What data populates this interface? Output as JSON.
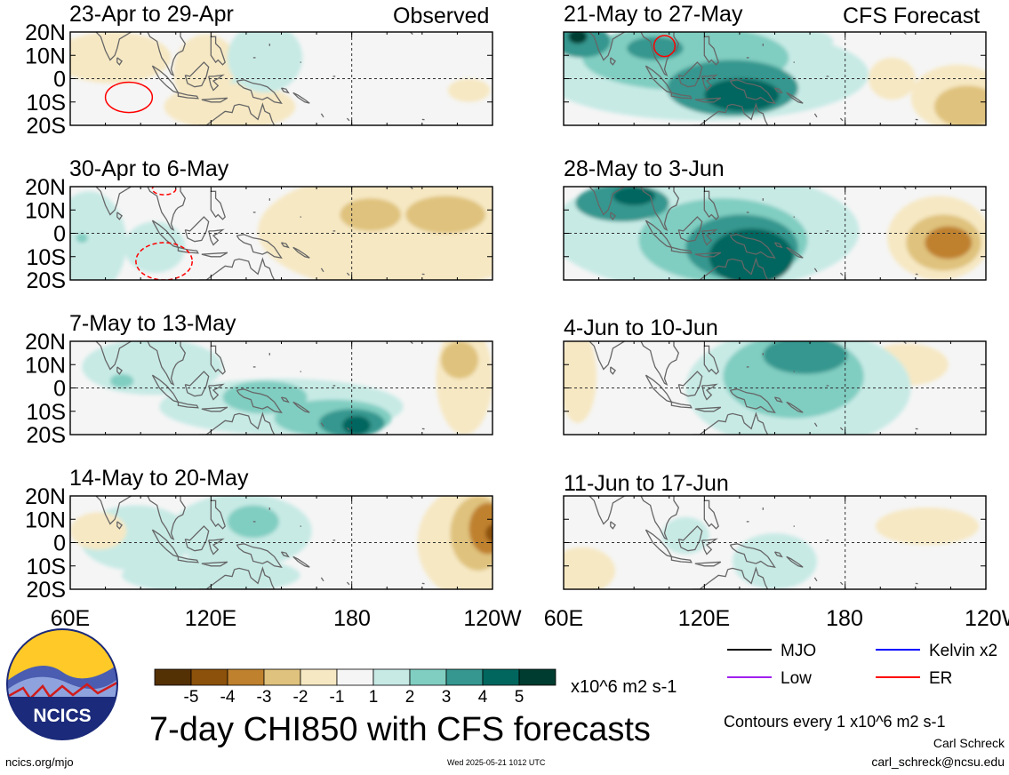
{
  "left_column_heading": "Observed",
  "right_column_heading": "CFS Forecast",
  "panels": [
    {
      "title": "23-Apr to 29-Apr"
    },
    {
      "title": "30-Apr to 6-May"
    },
    {
      "title": "7-May to 13-May"
    },
    {
      "title": "14-May to 20-May"
    },
    {
      "title": "21-May to 27-May"
    },
    {
      "title": "28-May to 3-Jun"
    },
    {
      "title": "4-Jun to 10-Jun"
    },
    {
      "title": "11-Jun to 17-Jun"
    }
  ],
  "colors": {
    "bins": [
      "#543005",
      "#8c510a",
      "#bf812d",
      "#dfc27d",
      "#f6e8c3",
      "#f5f5f5",
      "#c7eae5",
      "#80cdc1",
      "#35978f",
      "#01665e",
      "#003c30"
    ],
    "coast": "#666666",
    "mjo": "#000000",
    "kelvin": "#0000ff",
    "low": "#a020f0",
    "er": "#ff0000"
  },
  "chart_data": {
    "type": "heatmap",
    "title": "7-day CHI850 with CFS forecasts",
    "units": "x10^6 m2 s-1",
    "x_ticks": [
      "60E",
      "120E",
      "180",
      "120W"
    ],
    "y_ticks": [
      "20N",
      "10N",
      "0",
      "10S",
      "20S"
    ],
    "lon_range": [
      60,
      240
    ],
    "lat_range": [
      -20,
      20
    ],
    "colorbar": {
      "levels": [
        -5,
        -4,
        -3,
        -2,
        -1,
        1,
        2,
        3,
        4,
        5
      ],
      "tick_labels": [
        "-5",
        "-4",
        "-3",
        "-2",
        "-1",
        "1",
        "2",
        "3",
        "4",
        "5"
      ]
    },
    "contour_interval_note": "Contours every 1 x10^6 m2 s-1",
    "legend": [
      {
        "label": "MJO",
        "color": "#000000"
      },
      {
        "label": "Kelvin x2",
        "color": "#0000ff"
      },
      {
        "label": "Low",
        "color": "#a020f0"
      },
      {
        "label": "ER",
        "color": "#ff0000"
      }
    ],
    "panels": [
      {
        "title": "23-Apr to 29-Apr",
        "column": "Observed",
        "blobs": [
          {
            "lon": 78,
            "lat": 9,
            "rlon": 25,
            "rlat": 11,
            "v": -1.4
          },
          {
            "lon": 128,
            "lat": -12,
            "rlon": 28,
            "rlat": 10,
            "v": -1.3
          },
          {
            "lon": 118,
            "lat": 3,
            "rlon": 14,
            "rlat": 16,
            "v": -1.2
          },
          {
            "lon": 143,
            "lat": 9,
            "rlon": 16,
            "rlat": 15,
            "v": 1.4
          },
          {
            "lon": 136,
            "lat": -7,
            "rlon": 10,
            "rlat": 9,
            "v": 1.2
          },
          {
            "lon": 230,
            "lat": -5,
            "rlon": 9,
            "rlat": 5,
            "v": -1.2
          }
        ],
        "er_contours": [
          {
            "lon": 85,
            "lat": -8,
            "rlon": 10,
            "rlat": 6.5,
            "dashed": false
          }
        ]
      },
      {
        "title": "30-Apr to 6-May",
        "column": "Observed",
        "blobs": [
          {
            "lon": 200,
            "lat": 1,
            "rlon": 60,
            "rlat": 26,
            "v": -1.6
          },
          {
            "lon": 188,
            "lat": 8,
            "rlon": 13,
            "rlat": 7,
            "v": -2.1
          },
          {
            "lon": 220,
            "lat": 8,
            "rlon": 17,
            "rlat": 8,
            "v": -2.2
          },
          {
            "lon": 68,
            "lat": -4,
            "rlon": 16,
            "rlat": 22,
            "v": 1.3
          },
          {
            "lon": 96,
            "lat": -6,
            "rlon": 13,
            "rlat": 11,
            "v": 1.1
          },
          {
            "lon": 65,
            "lat": -2,
            "rlon": 2.5,
            "rlat": 2,
            "v": 2.2
          }
        ],
        "er_contours": [
          {
            "lon": 100,
            "lat": -12,
            "rlon": 12,
            "rlat": 8,
            "dashed": true
          },
          {
            "lon": 100,
            "lat": 19,
            "rlon": 5,
            "rlat": 2.5,
            "dashed": true
          }
        ]
      },
      {
        "title": "7-May to 13-May",
        "column": "Observed",
        "blobs": [
          {
            "lon": 150,
            "lat": -8,
            "rlon": 52,
            "rlat": 12,
            "v": 1.4
          },
          {
            "lon": 95,
            "lat": 9,
            "rlon": 30,
            "rlat": 12,
            "v": 1.2
          },
          {
            "lon": 172,
            "lat": -13,
            "rlon": 25,
            "rlat": 8,
            "v": 2.3
          },
          {
            "lon": 180,
            "lat": -15,
            "rlon": 14,
            "rlat": 6,
            "v": 3.4
          },
          {
            "lon": 182,
            "lat": -16,
            "rlon": 6,
            "rlat": 4,
            "v": 4.3
          },
          {
            "lon": 143,
            "lat": -4,
            "rlon": 18,
            "rlat": 7,
            "v": 2.1
          },
          {
            "lon": 82,
            "lat": 3,
            "rlon": 5,
            "rlat": 3,
            "v": 2.1
          },
          {
            "lon": 228,
            "lat": 4,
            "rlon": 12,
            "rlat": 24,
            "v": -1.5
          },
          {
            "lon": 226,
            "lat": 12,
            "rlon": 8,
            "rlat": 8,
            "v": -2.2
          }
        ],
        "er_contours": []
      },
      {
        "title": "14-May to 20-May",
        "column": "Observed",
        "blobs": [
          {
            "lon": 133,
            "lat": 5,
            "rlon": 30,
            "rlat": 16,
            "v": 1.3
          },
          {
            "lon": 138,
            "lat": 9,
            "rlon": 11,
            "rlat": 7,
            "v": 2.1
          },
          {
            "lon": 88,
            "lat": 2,
            "rlon": 24,
            "rlat": 14,
            "v": 1.2
          },
          {
            "lon": 120,
            "lat": -14,
            "rlon": 38,
            "rlat": 8,
            "v": 1.2
          },
          {
            "lon": 230,
            "lat": 0,
            "rlon": 22,
            "rlat": 24,
            "v": -1.5
          },
          {
            "lon": 234,
            "lat": 4,
            "rlon": 12,
            "rlat": 16,
            "v": -2.4
          },
          {
            "lon": 238,
            "lat": 6,
            "rlon": 8,
            "rlat": 11,
            "v": -3.4
          },
          {
            "lon": 241,
            "lat": 4,
            "rlon": 4,
            "rlat": 4,
            "v": -4.5
          },
          {
            "lon": 72,
            "lat": 5,
            "rlon": 12,
            "rlat": 8,
            "v": -1.2
          }
        ],
        "er_contours": []
      },
      {
        "title": "21-May to 27-May",
        "column": "CFS Forecast",
        "blobs": [
          {
            "lon": 120,
            "lat": 2,
            "rlon": 70,
            "rlat": 20,
            "v": 1.4
          },
          {
            "lon": 112,
            "lat": 9,
            "rlon": 44,
            "rlat": 14,
            "v": 2.3
          },
          {
            "lon": 132,
            "lat": -4,
            "rlon": 28,
            "rlat": 12,
            "v": 3.3
          },
          {
            "lon": 136,
            "lat": -7,
            "rlon": 16,
            "rlat": 7,
            "v": 4.2
          },
          {
            "lon": 68,
            "lat": 16,
            "rlon": 12,
            "rlat": 7,
            "v": 3.4
          },
          {
            "lon": 66,
            "lat": 18,
            "rlon": 4,
            "rlat": 3,
            "v": 5.2
          },
          {
            "lon": 99,
            "lat": 13,
            "rlon": 12,
            "rlat": 5,
            "v": 3.2
          },
          {
            "lon": 155,
            "lat": 16,
            "rlon": 20,
            "rlat": 6,
            "v": 1.3
          },
          {
            "lon": 228,
            "lat": -8,
            "rlon": 20,
            "rlat": 14,
            "v": -1.5
          },
          {
            "lon": 232,
            "lat": -12,
            "rlon": 14,
            "rlat": 9,
            "v": -2.2
          },
          {
            "lon": 200,
            "lat": 0,
            "rlon": 10,
            "rlat": 9,
            "v": -1.1
          }
        ],
        "er_contours": [
          {
            "lon": 103,
            "lat": 14,
            "rlon": 4.5,
            "rlat": 4.5,
            "dashed": false
          }
        ]
      },
      {
        "title": "28-May to 3-Jun",
        "column": "CFS Forecast",
        "blobs": [
          {
            "lon": 120,
            "lat": 1,
            "rlon": 66,
            "rlat": 26,
            "v": 1.5
          },
          {
            "lon": 128,
            "lat": -3,
            "rlon": 36,
            "rlat": 18,
            "v": 2.6
          },
          {
            "lon": 136,
            "lat": -6,
            "rlon": 24,
            "rlat": 14,
            "v": 3.6
          },
          {
            "lon": 140,
            "lat": -10,
            "rlon": 18,
            "rlat": 12,
            "v": 4.5
          },
          {
            "lon": 85,
            "lat": 13,
            "rlon": 20,
            "rlat": 8,
            "v": 3.1
          },
          {
            "lon": 90,
            "lat": 16,
            "rlon": 9,
            "rlat": 4,
            "v": 4.1
          },
          {
            "lon": 220,
            "lat": -2,
            "rlon": 22,
            "rlat": 18,
            "v": -1.5
          },
          {
            "lon": 222,
            "lat": -4,
            "rlon": 16,
            "rlat": 12,
            "v": -2.5
          },
          {
            "lon": 224,
            "lat": -4,
            "rlon": 10,
            "rlat": 7,
            "v": -3.4
          }
        ],
        "er_contours": []
      },
      {
        "title": "4-Jun to 10-Jun",
        "column": "CFS Forecast",
        "blobs": [
          {
            "lon": 160,
            "lat": 0,
            "rlon": 48,
            "rlat": 26,
            "v": 1.4
          },
          {
            "lon": 158,
            "lat": 5,
            "rlon": 30,
            "rlat": 18,
            "v": 2.4
          },
          {
            "lon": 163,
            "lat": 14,
            "rlon": 18,
            "rlat": 8,
            "v": 3.2
          },
          {
            "lon": 140,
            "lat": 16,
            "rlon": 12,
            "rlat": 5,
            "v": 1.6
          },
          {
            "lon": 66,
            "lat": 5,
            "rlon": 8,
            "rlat": 20,
            "v": -1.2
          },
          {
            "lon": 206,
            "lat": 10,
            "rlon": 18,
            "rlat": 9,
            "v": -1.2
          }
        ],
        "er_contours": []
      },
      {
        "title": "11-Jun to 17-Jun",
        "column": "CFS Forecast",
        "blobs": [
          {
            "lon": 215,
            "lat": 7,
            "rlon": 22,
            "rlat": 8,
            "v": -1.3
          },
          {
            "lon": 68,
            "lat": -12,
            "rlon": 14,
            "rlat": 10,
            "v": -1.2
          },
          {
            "lon": 150,
            "lat": -8,
            "rlon": 18,
            "rlat": 12,
            "v": 1.2
          },
          {
            "lon": 112,
            "lat": 3,
            "rlon": 10,
            "rlat": 8,
            "v": 1.1
          }
        ],
        "er_contours": []
      }
    ]
  },
  "logo": {
    "text": "NCICS"
  },
  "footer": {
    "url": "ncics.org/mjo",
    "timestamp": "Wed 2025-05-21 1012 UTC",
    "author": "Carl Schreck",
    "email": "carl_schreck@ncsu.edu"
  }
}
